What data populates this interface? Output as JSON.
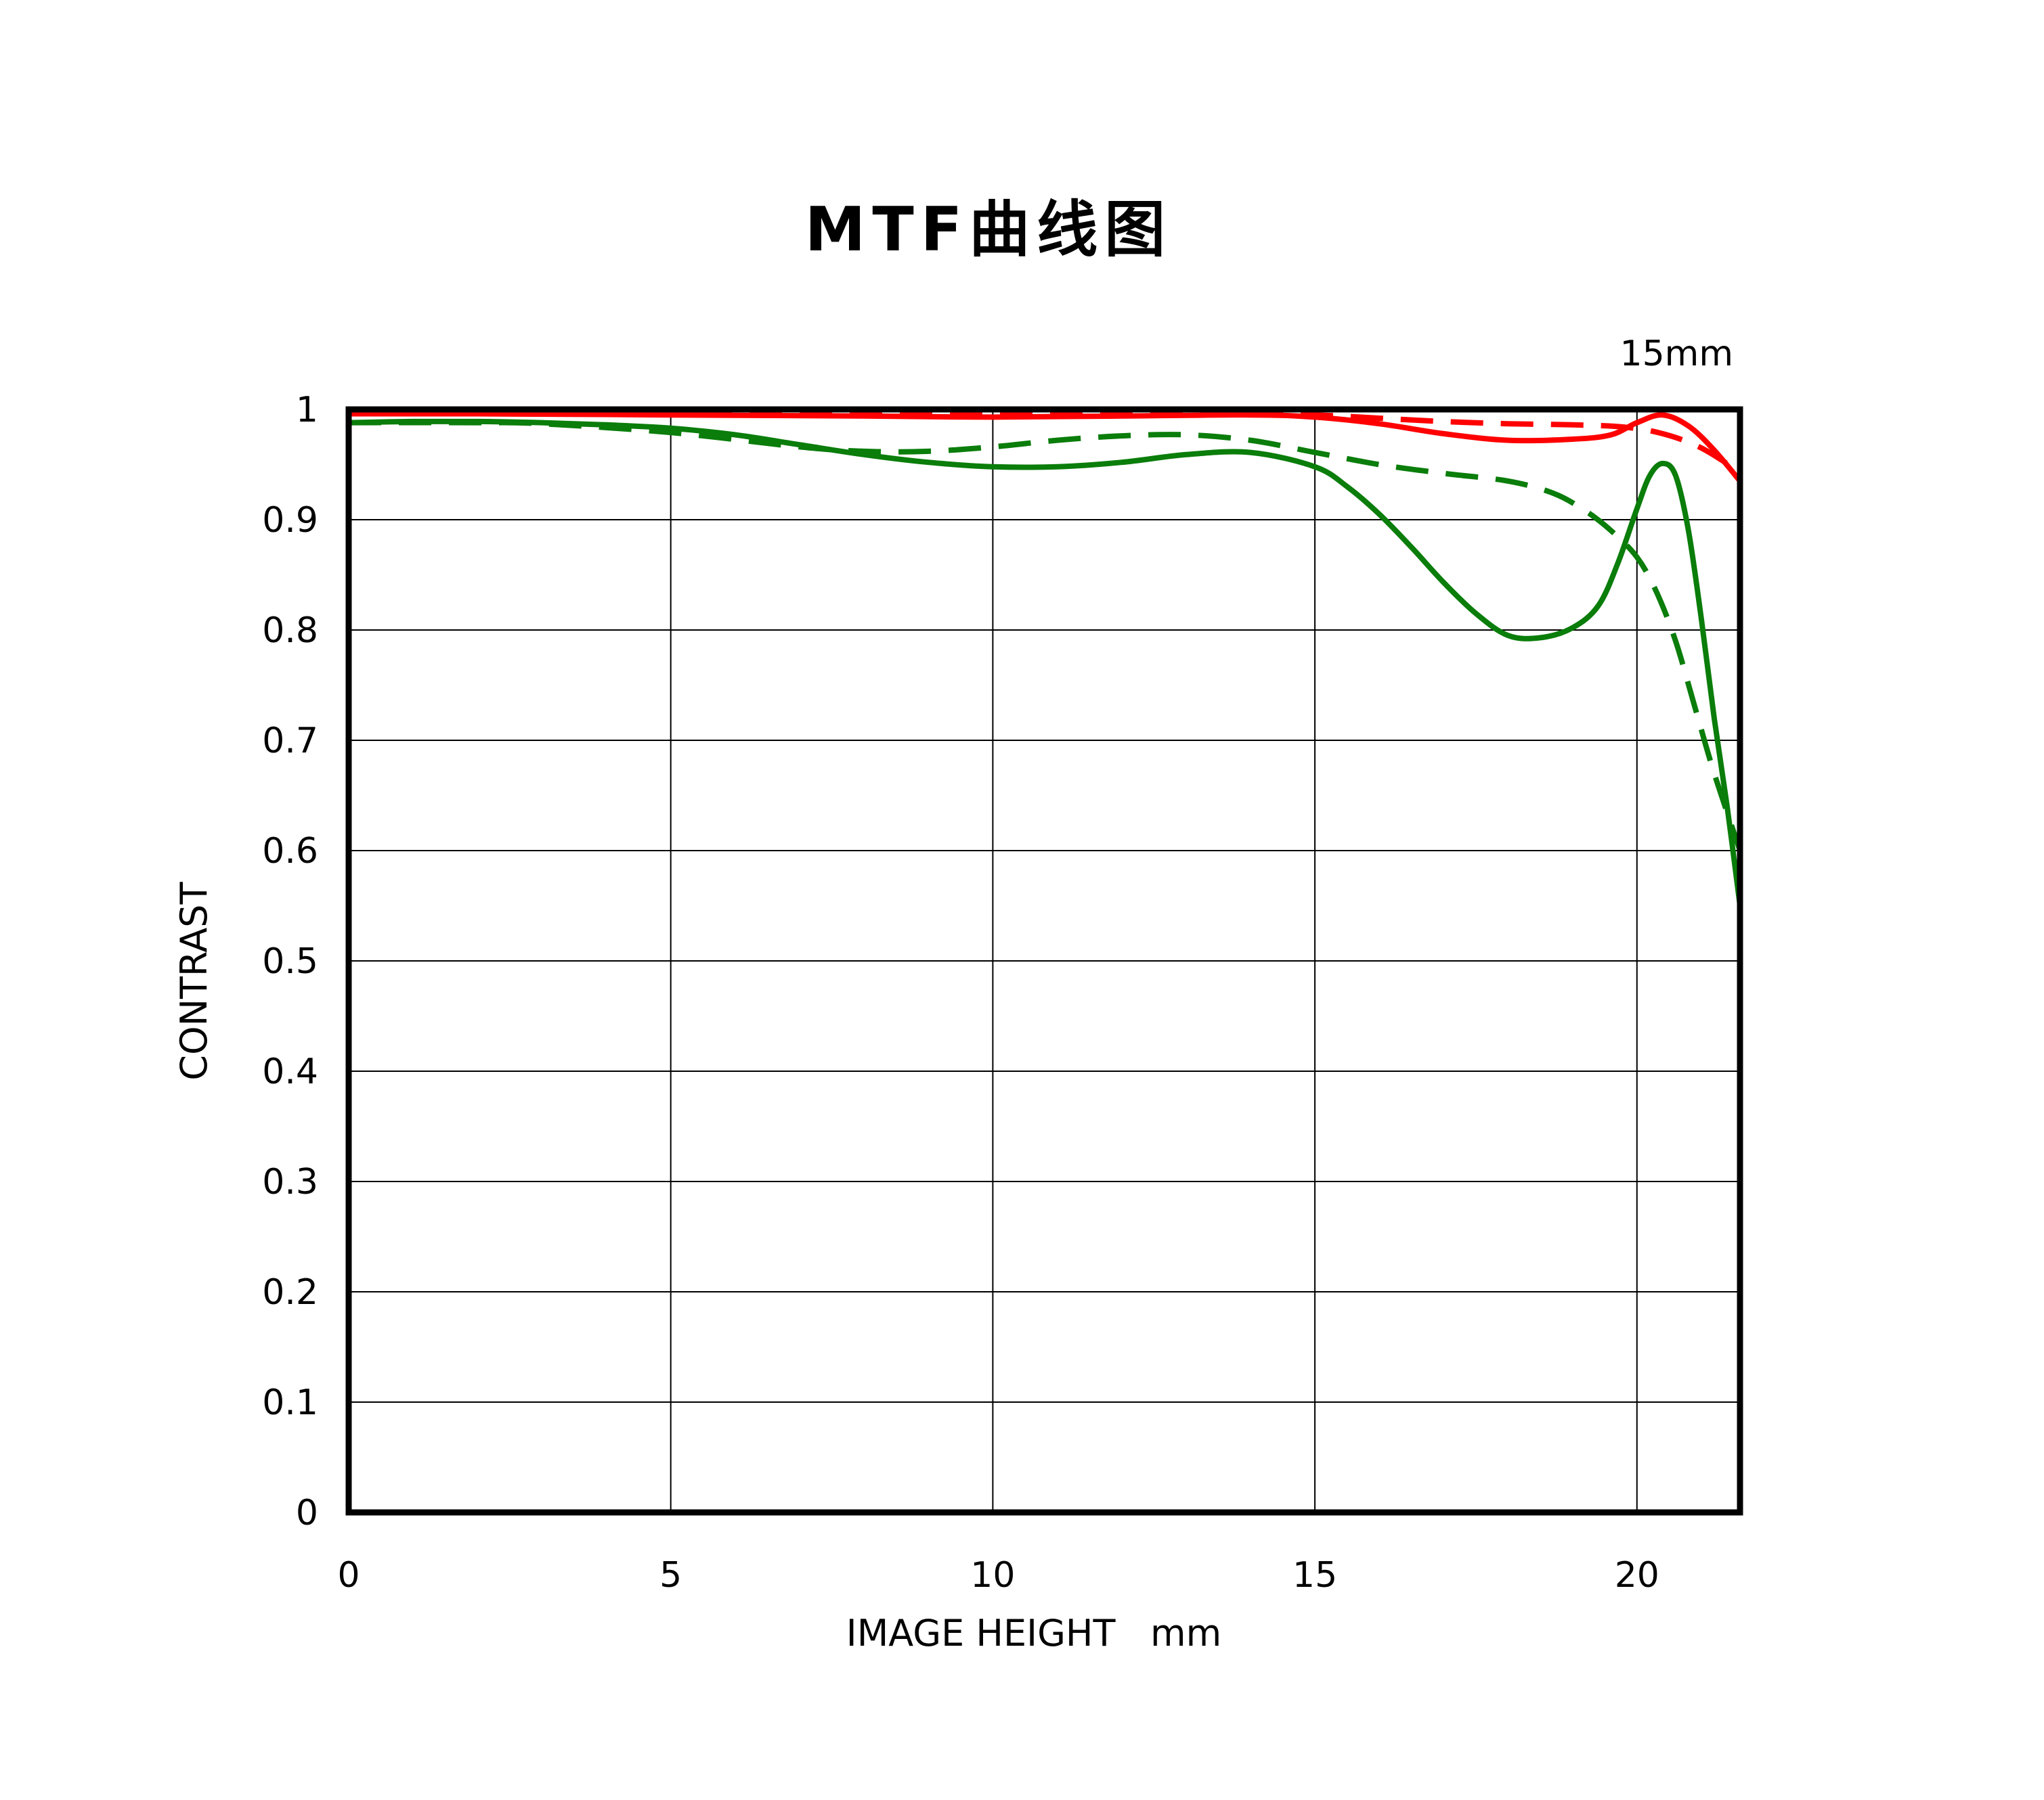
{
  "chart_data": {
    "type": "line",
    "title": "MTF曲线图",
    "subtitle": "15mm",
    "xlabel": "IMAGE HEIGHT   mm",
    "ylabel": "CONTRAST",
    "xlim": [
      0,
      21.6
    ],
    "ylim": [
      0,
      1
    ],
    "x_ticks": [
      "0",
      "5",
      "10",
      "15",
      "20"
    ],
    "x_tick_values": [
      0,
      5,
      10,
      15,
      20
    ],
    "y_ticks": [
      "0",
      "0.1",
      "0.2",
      "0.3",
      "0.4",
      "0.5",
      "0.6",
      "0.7",
      "0.8",
      "0.9",
      "1"
    ],
    "y_tick_values": [
      0,
      0.1,
      0.2,
      0.3,
      0.4,
      0.5,
      0.6,
      0.7,
      0.8,
      0.9,
      1
    ],
    "grid": true,
    "series": [
      {
        "color": "#ff0000",
        "dash": false,
        "points": [
          [
            0,
            0.996
          ],
          [
            2,
            0.996
          ],
          [
            5,
            0.995
          ],
          [
            8,
            0.994
          ],
          [
            10,
            0.993
          ],
          [
            12,
            0.994
          ],
          [
            14,
            0.995
          ],
          [
            15,
            0.993
          ],
          [
            16,
            0.987
          ],
          [
            17,
            0.978
          ],
          [
            18,
            0.972
          ],
          [
            19,
            0.973
          ],
          [
            19.6,
            0.977
          ],
          [
            20,
            0.988
          ],
          [
            20.4,
            0.995
          ],
          [
            20.8,
            0.985
          ],
          [
            21.2,
            0.963
          ],
          [
            21.6,
            0.935
          ]
        ]
      },
      {
        "color": "#ff0000",
        "dash": true,
        "points": [
          [
            0,
            0.996
          ],
          [
            5,
            0.996
          ],
          [
            8,
            0.995
          ],
          [
            10,
            0.995
          ],
          [
            12,
            0.996
          ],
          [
            14,
            0.996
          ],
          [
            15,
            0.995
          ],
          [
            16,
            0.992
          ],
          [
            17,
            0.989
          ],
          [
            18,
            0.987
          ],
          [
            19,
            0.986
          ],
          [
            19.8,
            0.984
          ],
          [
            20.4,
            0.978
          ],
          [
            21,
            0.965
          ],
          [
            21.6,
            0.943
          ]
        ]
      },
      {
        "color": "#0a7d0a",
        "dash": false,
        "points": [
          [
            0,
            0.988
          ],
          [
            1,
            0.989
          ],
          [
            2,
            0.989
          ],
          [
            3,
            0.988
          ],
          [
            4,
            0.986
          ],
          [
            5,
            0.983
          ],
          [
            6,
            0.977
          ],
          [
            7,
            0.968
          ],
          [
            8,
            0.959
          ],
          [
            9,
            0.952
          ],
          [
            10,
            0.948
          ],
          [
            11,
            0.948
          ],
          [
            12,
            0.952
          ],
          [
            13,
            0.959
          ],
          [
            14,
            0.961
          ],
          [
            15,
            0.948
          ],
          [
            15.5,
            0.93
          ],
          [
            16,
            0.905
          ],
          [
            16.5,
            0.875
          ],
          [
            17,
            0.843
          ],
          [
            17.5,
            0.815
          ],
          [
            18,
            0.795
          ],
          [
            18.5,
            0.793
          ],
          [
            19,
            0.802
          ],
          [
            19.4,
            0.822
          ],
          [
            19.7,
            0.86
          ],
          [
            20,
            0.91
          ],
          [
            20.2,
            0.94
          ],
          [
            20.4,
            0.951
          ],
          [
            20.6,
            0.94
          ],
          [
            20.8,
            0.89
          ],
          [
            21,
            0.81
          ],
          [
            21.2,
            0.72
          ],
          [
            21.4,
            0.64
          ],
          [
            21.6,
            0.55
          ]
        ]
      },
      {
        "color": "#0a7d0a",
        "dash": true,
        "points": [
          [
            0,
            0.988
          ],
          [
            2,
            0.988
          ],
          [
            3,
            0.987
          ],
          [
            5,
            0.979
          ],
          [
            7,
            0.966
          ],
          [
            8,
            0.962
          ],
          [
            9,
            0.962
          ],
          [
            10,
            0.966
          ],
          [
            11,
            0.972
          ],
          [
            12,
            0.976
          ],
          [
            13,
            0.977
          ],
          [
            14,
            0.972
          ],
          [
            15,
            0.961
          ],
          [
            16,
            0.95
          ],
          [
            17,
            0.942
          ],
          [
            18,
            0.935
          ],
          [
            18.7,
            0.924
          ],
          [
            19.2,
            0.908
          ],
          [
            19.6,
            0.89
          ],
          [
            20,
            0.866
          ],
          [
            20.3,
            0.835
          ],
          [
            20.6,
            0.79
          ],
          [
            20.9,
            0.73
          ],
          [
            21.2,
            0.67
          ],
          [
            21.6,
            0.6
          ]
        ]
      }
    ]
  }
}
